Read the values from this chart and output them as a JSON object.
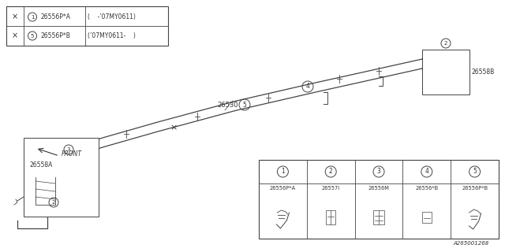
{
  "bg_color": "#ffffff",
  "legend_rows": [
    {
      "circle_num": "1",
      "part": "26556P*A",
      "note": "(    -’07MY0611)"
    },
    {
      "circle_num": "5",
      "part": "26556P*B",
      "note": "(’07MY0611-    )"
    }
  ],
  "parts_table_cols": [
    {
      "num": "1",
      "code": "26556P*A"
    },
    {
      "num": "2",
      "code": "26557I"
    },
    {
      "num": "3",
      "code": "26556M"
    },
    {
      "num": "4",
      "code": "26556*B"
    },
    {
      "num": "5",
      "code": "26556P*B"
    }
  ],
  "line_color": "#444444",
  "text_color": "#333333",
  "label_26530": "26530",
  "label_26558B": "26558B",
  "label_26558A": "26558A",
  "label_front": "FRONT",
  "label_bottom": "A265001268",
  "asterisk": "×"
}
